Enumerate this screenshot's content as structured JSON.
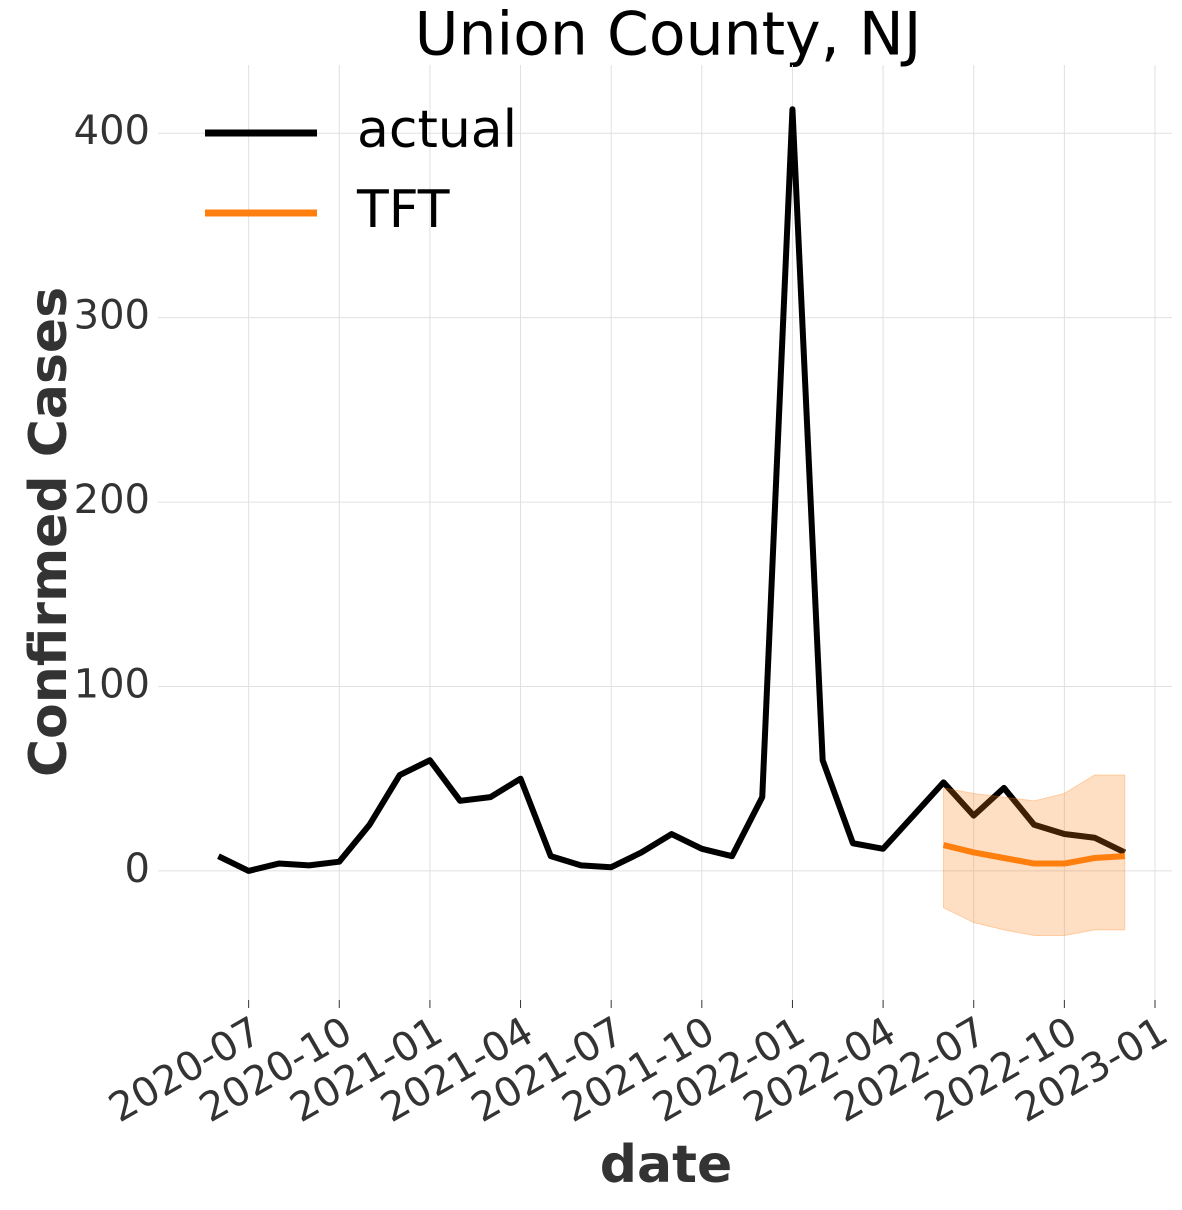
{
  "chart_data": {
    "type": "line",
    "title": "Union County, NJ",
    "xlabel": "date",
    "ylabel": "Confirmed Cases",
    "x": [
      "2020-06",
      "2020-07",
      "2020-08",
      "2020-09",
      "2020-10",
      "2020-11",
      "2020-12",
      "2021-01",
      "2021-02",
      "2021-03",
      "2021-04",
      "2021-05",
      "2021-06",
      "2021-07",
      "2021-08",
      "2021-09",
      "2021-10",
      "2021-11",
      "2021-12",
      "2022-01",
      "2022-02",
      "2022-03",
      "2022-04",
      "2022-05",
      "2022-06",
      "2022-07",
      "2022-08",
      "2022-09",
      "2022-10",
      "2022-11",
      "2022-12"
    ],
    "series": [
      {
        "name": "actual",
        "color": "#000000",
        "values": [
          8,
          0,
          4,
          3,
          5,
          25,
          52,
          60,
          38,
          40,
          50,
          8,
          3,
          2,
          10,
          20,
          12,
          8,
          40,
          413,
          60,
          15,
          12,
          30,
          48,
          30,
          45,
          25,
          20,
          18,
          10
        ]
      },
      {
        "name": "TFT",
        "color": "#ff7f0e",
        "values": [
          null,
          null,
          null,
          null,
          null,
          null,
          null,
          null,
          null,
          null,
          null,
          null,
          null,
          null,
          null,
          null,
          null,
          null,
          null,
          null,
          null,
          null,
          null,
          null,
          14,
          10,
          7,
          4,
          4,
          7,
          8
        ],
        "lower": [
          null,
          null,
          null,
          null,
          null,
          null,
          null,
          null,
          null,
          null,
          null,
          null,
          null,
          null,
          null,
          null,
          null,
          null,
          null,
          null,
          null,
          null,
          null,
          null,
          -20,
          -28,
          -32,
          -35,
          -35,
          -32,
          -32
        ],
        "upper": [
          null,
          null,
          null,
          null,
          null,
          null,
          null,
          null,
          null,
          null,
          null,
          null,
          null,
          null,
          null,
          null,
          null,
          null,
          null,
          null,
          null,
          null,
          null,
          null,
          45,
          42,
          40,
          38,
          42,
          52,
          52
        ]
      }
    ],
    "xlim": [
      "2020-04",
      "2023-01"
    ],
    "xticks": [
      "2020-07",
      "2020-10",
      "2021-01",
      "2021-04",
      "2021-07",
      "2021-10",
      "2022-01",
      "2022-04",
      "2022-07",
      "2022-10",
      "2023-01"
    ],
    "ylim": [
      -70,
      437
    ],
    "yticks": [
      0,
      100,
      200,
      300,
      400
    ],
    "grid": true,
    "legend": "upper left"
  }
}
